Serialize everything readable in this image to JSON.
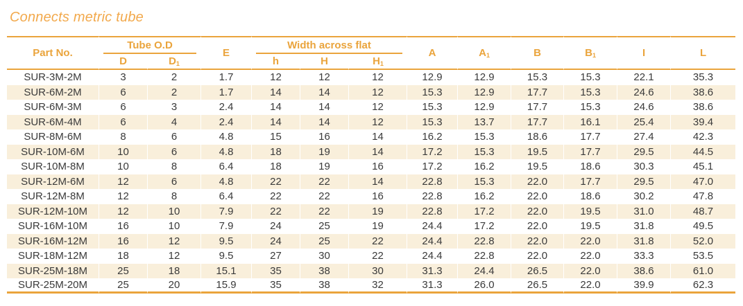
{
  "title": "Connects metric tube",
  "colors": {
    "accent": "#EAA43C",
    "row_alt_background": "#F9EFDB",
    "data_text": "#3A3A3A",
    "title_text": "#F2A94C"
  },
  "table": {
    "header": {
      "part_no": "Part No.",
      "tube_od": "Tube O.D",
      "e": "E",
      "width_across_flat": "Width across flat",
      "d": "D",
      "d1_base": "D",
      "d1_sub": "1",
      "h_small": "h",
      "h_cap": "H",
      "h1_base": "H",
      "h1_sub": "1",
      "a": "A",
      "a1_base": "A",
      "a1_sub": "1",
      "b": "B",
      "b1_base": "B",
      "b1_sub": "1",
      "i": "I",
      "l": "L"
    },
    "rows": [
      [
        "SUR-3M-2M",
        "3",
        "2",
        "1.7",
        "12",
        "12",
        "12",
        "12.9",
        "12.9",
        "15.3",
        "15.3",
        "22.1",
        "35.3"
      ],
      [
        "SUR-6M-2M",
        "6",
        "2",
        "1.7",
        "14",
        "14",
        "12",
        "15.3",
        "12.9",
        "17.7",
        "15.3",
        "24.6",
        "38.6"
      ],
      [
        "SUR-6M-3M",
        "6",
        "3",
        "2.4",
        "14",
        "14",
        "12",
        "15.3",
        "12.9",
        "17.7",
        "15.3",
        "24.6",
        "38.6"
      ],
      [
        "SUR-6M-4M",
        "6",
        "4",
        "2.4",
        "14",
        "14",
        "12",
        "15.3",
        "13.7",
        "17.7",
        "16.1",
        "25.4",
        "39.4"
      ],
      [
        "SUR-8M-6M",
        "8",
        "6",
        "4.8",
        "15",
        "16",
        "14",
        "16.2",
        "15.3",
        "18.6",
        "17.7",
        "27.4",
        "42.3"
      ],
      [
        "SUR-10M-6M",
        "10",
        "6",
        "4.8",
        "18",
        "19",
        "14",
        "17.2",
        "15.3",
        "19.5",
        "17.7",
        "29.5",
        "44.5"
      ],
      [
        "SUR-10M-8M",
        "10",
        "8",
        "6.4",
        "18",
        "19",
        "16",
        "17.2",
        "16.2",
        "19.5",
        "18.6",
        "30.3",
        "45.1"
      ],
      [
        "SUR-12M-6M",
        "12",
        "6",
        "4.8",
        "22",
        "22",
        "14",
        "22.8",
        "15.3",
        "22.0",
        "17.7",
        "29.5",
        "47.0"
      ],
      [
        "SUR-12M-8M",
        "12",
        "8",
        "6.4",
        "22",
        "22",
        "16",
        "22.8",
        "16.2",
        "22.0",
        "18.6",
        "30.2",
        "47.8"
      ],
      [
        "SUR-12M-10M",
        "12",
        "10",
        "7.9",
        "22",
        "22",
        "19",
        "22.8",
        "17.2",
        "22.0",
        "19.5",
        "31.0",
        "48.7"
      ],
      [
        "SUR-16M-10M",
        "16",
        "10",
        "7.9",
        "24",
        "25",
        "19",
        "24.4",
        "17.2",
        "22.0",
        "19.5",
        "31.8",
        "49.5"
      ],
      [
        "SUR-16M-12M",
        "16",
        "12",
        "9.5",
        "24",
        "25",
        "22",
        "24.4",
        "22.8",
        "22.0",
        "22.0",
        "31.8",
        "52.0"
      ],
      [
        "SUR-18M-12M",
        "18",
        "12",
        "9.5",
        "27",
        "30",
        "22",
        "24.4",
        "22.8",
        "22.0",
        "22.0",
        "33.3",
        "53.5"
      ],
      [
        "SUR-25M-18M",
        "25",
        "18",
        "15.1",
        "35",
        "38",
        "30",
        "31.3",
        "24.4",
        "26.5",
        "22.0",
        "38.6",
        "61.0"
      ],
      [
        "SUR-25M-20M",
        "25",
        "20",
        "15.9",
        "35",
        "38",
        "32",
        "31.3",
        "26.0",
        "26.5",
        "22.0",
        "39.9",
        "62.3"
      ]
    ]
  }
}
